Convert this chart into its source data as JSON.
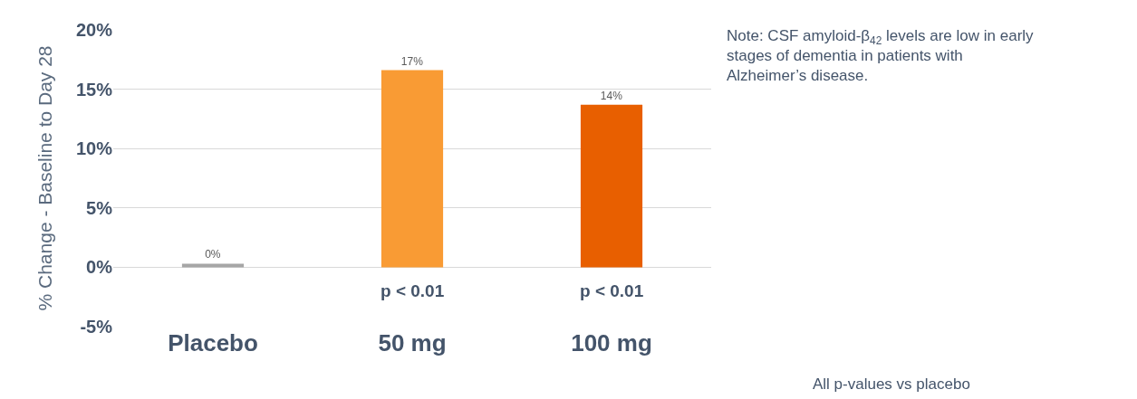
{
  "chart_data": {
    "type": "bar",
    "ylabel": "% Change - Baseline to Day 28",
    "categories": [
      "Placebo",
      "50 mg",
      "100 mg"
    ],
    "values": [
      0.3,
      16.6,
      13.7
    ],
    "colors": [
      "#a6a6a6",
      "#f99b34",
      "#e85f00"
    ],
    "value_labels": [
      "0%",
      "17%",
      "14%"
    ],
    "ylim": [
      -5,
      20
    ],
    "yticks": [
      {
        "value": -5,
        "label": "-5%"
      },
      {
        "value": 0,
        "label": "0%"
      },
      {
        "value": 5,
        "label": "5%"
      },
      {
        "value": 10,
        "label": "10%"
      },
      {
        "value": 15,
        "label": "15%"
      },
      {
        "value": 20,
        "label": "20%"
      }
    ],
    "grid": "y",
    "annotations": [
      "p < 0.01",
      "p < 0.01",
      "Note: CSF amyloid-β$_{42}$ levels are low in early stages of dementia in patients with Alzheimer’s disease.",
      "All p-values vs placebo"
    ]
  }
}
